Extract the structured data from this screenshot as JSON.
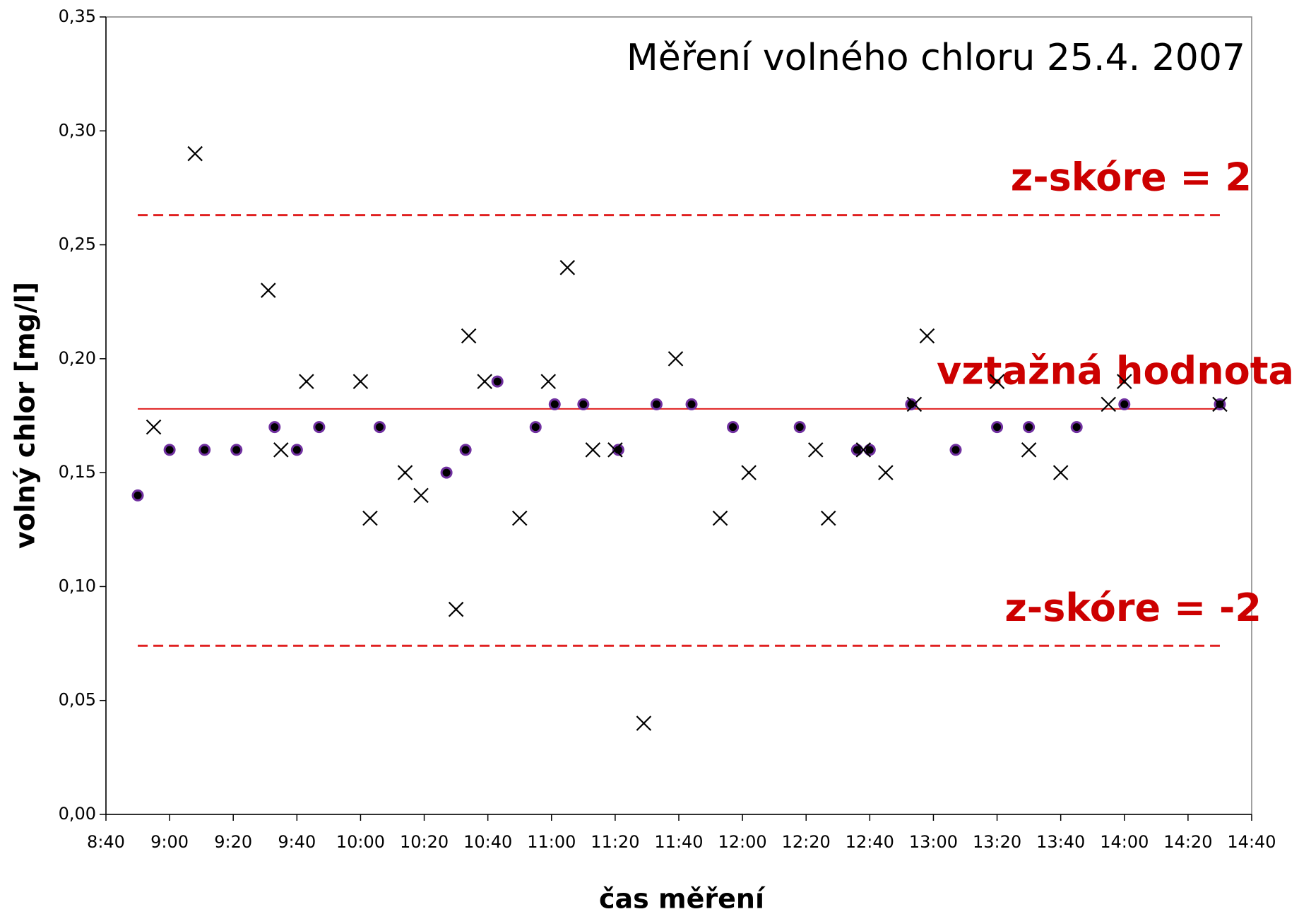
{
  "chart_data": {
    "type": "scatter",
    "title": "Měření volného chloru 25.4. 2007",
    "x_label": "čas měření",
    "y_label": "volný chlor [mg/l]",
    "xlim": [
      520,
      880
    ],
    "xticks": [
      {
        "value": 520,
        "label": "8:40"
      },
      {
        "value": 540,
        "label": "9:00"
      },
      {
        "value": 560,
        "label": "9:20"
      },
      {
        "value": 580,
        "label": "9:40"
      },
      {
        "value": 600,
        "label": "10:00"
      },
      {
        "value": 620,
        "label": "10:20"
      },
      {
        "value": 640,
        "label": "10:40"
      },
      {
        "value": 660,
        "label": "11:00"
      },
      {
        "value": 680,
        "label": "11:20"
      },
      {
        "value": 700,
        "label": "11:40"
      },
      {
        "value": 720,
        "label": "12:00"
      },
      {
        "value": 740,
        "label": "12:20"
      },
      {
        "value": 760,
        "label": "12:40"
      },
      {
        "value": 780,
        "label": "13:00"
      },
      {
        "value": 800,
        "label": "13:20"
      },
      {
        "value": 820,
        "label": "13:40"
      },
      {
        "value": 840,
        "label": "14:00"
      },
      {
        "value": 860,
        "label": "14:20"
      },
      {
        "value": 880,
        "label": "14:40"
      }
    ],
    "ylim": [
      0,
      0.35
    ],
    "yticks": [
      {
        "value": 0,
        "label": "0,00"
      },
      {
        "value": 0.05,
        "label": "0,05"
      },
      {
        "value": 0.1,
        "label": "0,10"
      },
      {
        "value": 0.15,
        "label": "0,15"
      },
      {
        "value": 0.2,
        "label": "0,20"
      },
      {
        "value": 0.25,
        "label": "0,25"
      },
      {
        "value": 0.3,
        "label": "0,30"
      },
      {
        "value": 0.35,
        "label": "0,35"
      }
    ],
    "series": [
      {
        "marker": "circle",
        "color": "#000000",
        "edge_color": "#7030a0",
        "x": [
          530,
          540,
          551,
          561,
          573,
          580,
          587,
          606,
          627,
          633,
          643,
          655,
          661,
          670,
          681,
          693,
          704,
          717,
          738,
          756,
          760,
          773,
          787,
          800,
          810,
          825,
          840,
          870
        ],
        "values": [
          0.14,
          0.16,
          0.16,
          0.16,
          0.17,
          0.16,
          0.17,
          0.17,
          0.15,
          0.16,
          0.19,
          0.17,
          0.18,
          0.18,
          0.16,
          0.18,
          0.18,
          0.17,
          0.17,
          0.16,
          0.16,
          0.18,
          0.16,
          0.17,
          0.17,
          0.17,
          0.18,
          0.18
        ]
      },
      {
        "marker": "cross",
        "color": "#000000",
        "x": [
          535,
          548,
          571,
          575,
          583,
          600,
          603,
          614,
          619,
          630,
          634,
          639,
          650,
          659,
          665,
          673,
          680,
          689,
          699,
          713,
          722,
          743,
          747,
          758,
          765,
          774,
          778,
          800,
          810,
          820,
          835,
          840,
          870
        ],
        "values": [
          0.17,
          0.29,
          0.23,
          0.16,
          0.19,
          0.19,
          0.13,
          0.15,
          0.14,
          0.09,
          0.21,
          0.19,
          0.13,
          0.19,
          0.24,
          0.16,
          0.16,
          0.04,
          0.2,
          0.13,
          0.15,
          0.16,
          0.13,
          0.16,
          0.15,
          0.18,
          0.21,
          0.19,
          0.16,
          0.15,
          0.18,
          0.19,
          0.18
        ]
      }
    ],
    "reference_lines": [
      {
        "label": "z-skóre = 2",
        "value": 0.263,
        "style": "dashed",
        "color": "#e02020"
      },
      {
        "label": "vztažná hodnota",
        "value": 0.178,
        "style": "solid",
        "color": "#e02020"
      },
      {
        "label": "z-skóre = -2",
        "value": 0.074,
        "style": "dashed",
        "color": "#e02020"
      }
    ]
  }
}
